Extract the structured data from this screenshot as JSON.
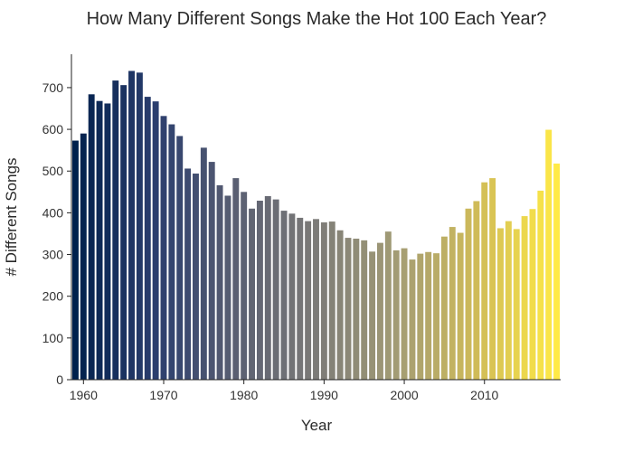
{
  "chart_data": {
    "type": "bar",
    "title": "How Many Different Songs Make the Hot 100 Each Year?",
    "xlabel": "Year",
    "ylabel": "# Different Songs",
    "xlim": [
      1958.5,
      2019.5
    ],
    "ylim": [
      0,
      780
    ],
    "x_ticks": [
      1960,
      1970,
      1980,
      1990,
      2000,
      2010
    ],
    "y_ticks": [
      0,
      100,
      200,
      300,
      400,
      500,
      600,
      700
    ],
    "grid": false,
    "colorscale": [
      "#00204c",
      "#2b3e6e",
      "#5a5f72",
      "#7c7b78",
      "#a39c75",
      "#cfbb58",
      "#ffea46"
    ],
    "x": [
      1959,
      1960,
      1961,
      1962,
      1963,
      1964,
      1965,
      1966,
      1967,
      1968,
      1969,
      1970,
      1971,
      1972,
      1973,
      1974,
      1975,
      1976,
      1977,
      1978,
      1979,
      1980,
      1981,
      1982,
      1983,
      1984,
      1985,
      1986,
      1987,
      1988,
      1989,
      1990,
      1991,
      1992,
      1993,
      1994,
      1995,
      1996,
      1997,
      1998,
      1999,
      2000,
      2001,
      2002,
      2003,
      2004,
      2005,
      2006,
      2007,
      2008,
      2009,
      2010,
      2011,
      2012,
      2013,
      2014,
      2015,
      2016,
      2017,
      2018,
      2019
    ],
    "values": [
      573,
      590,
      684,
      668,
      662,
      717,
      706,
      740,
      736,
      678,
      667,
      632,
      612,
      584,
      506,
      494,
      556,
      522,
      466,
      441,
      483,
      450,
      410,
      429,
      440,
      432,
      405,
      398,
      388,
      380,
      385,
      377,
      379,
      358,
      340,
      338,
      334,
      307,
      328,
      355,
      310,
      315,
      288,
      302,
      306,
      303,
      343,
      366,
      352,
      410,
      428,
      473,
      483,
      363,
      380,
      361,
      392,
      409,
      453,
      599,
      518
    ]
  }
}
